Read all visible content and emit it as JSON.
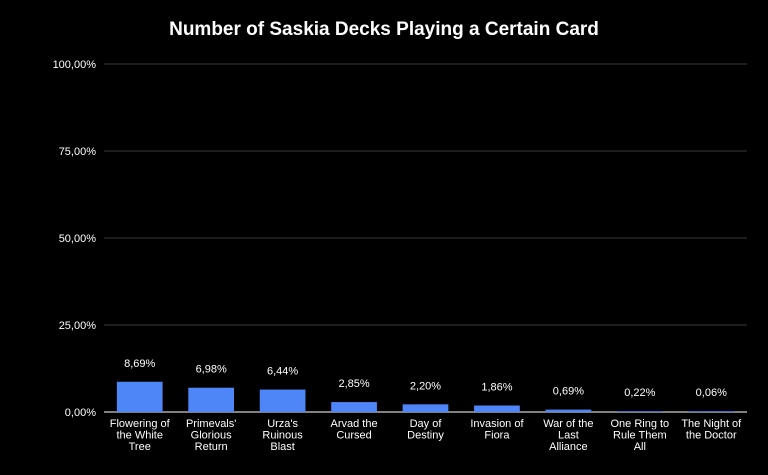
{
  "chart_data": {
    "type": "bar",
    "title": "Number of Saskia Decks Playing a Certain Card",
    "xlabel": "",
    "ylabel": "",
    "ylim": [
      0,
      100
    ],
    "yticks": [
      0,
      25,
      50,
      75,
      100
    ],
    "ytick_labels": [
      "0,00%",
      "25,00%",
      "50,00%",
      "75,00%",
      "100,00%"
    ],
    "grid": true,
    "legend": "none",
    "bar_color": "#4f86f7",
    "gridline_color": "#3a3a3a",
    "categories": [
      [
        "Flowering of",
        "the White",
        "Tree"
      ],
      [
        "Primevals'",
        "Glorious",
        "Return"
      ],
      [
        "Urza's",
        "Ruinous",
        "Blast"
      ],
      [
        "Arvad the",
        "Cursed"
      ],
      [
        "Day of",
        "Destiny"
      ],
      [
        "Invasion of",
        "Fiora"
      ],
      [
        "War of the",
        "Last",
        "Alliance"
      ],
      [
        "One Ring to",
        "Rule Them",
        "All"
      ],
      [
        "The Night of",
        "the Doctor"
      ]
    ],
    "values": [
      8.69,
      6.98,
      6.44,
      2.85,
      2.2,
      1.86,
      0.69,
      0.22,
      0.06
    ],
    "value_labels": [
      "8,69%",
      "6,98%",
      "6,44%",
      "2,85%",
      "2,20%",
      "1,86%",
      "0,69%",
      "0,22%",
      "0,06%"
    ]
  }
}
